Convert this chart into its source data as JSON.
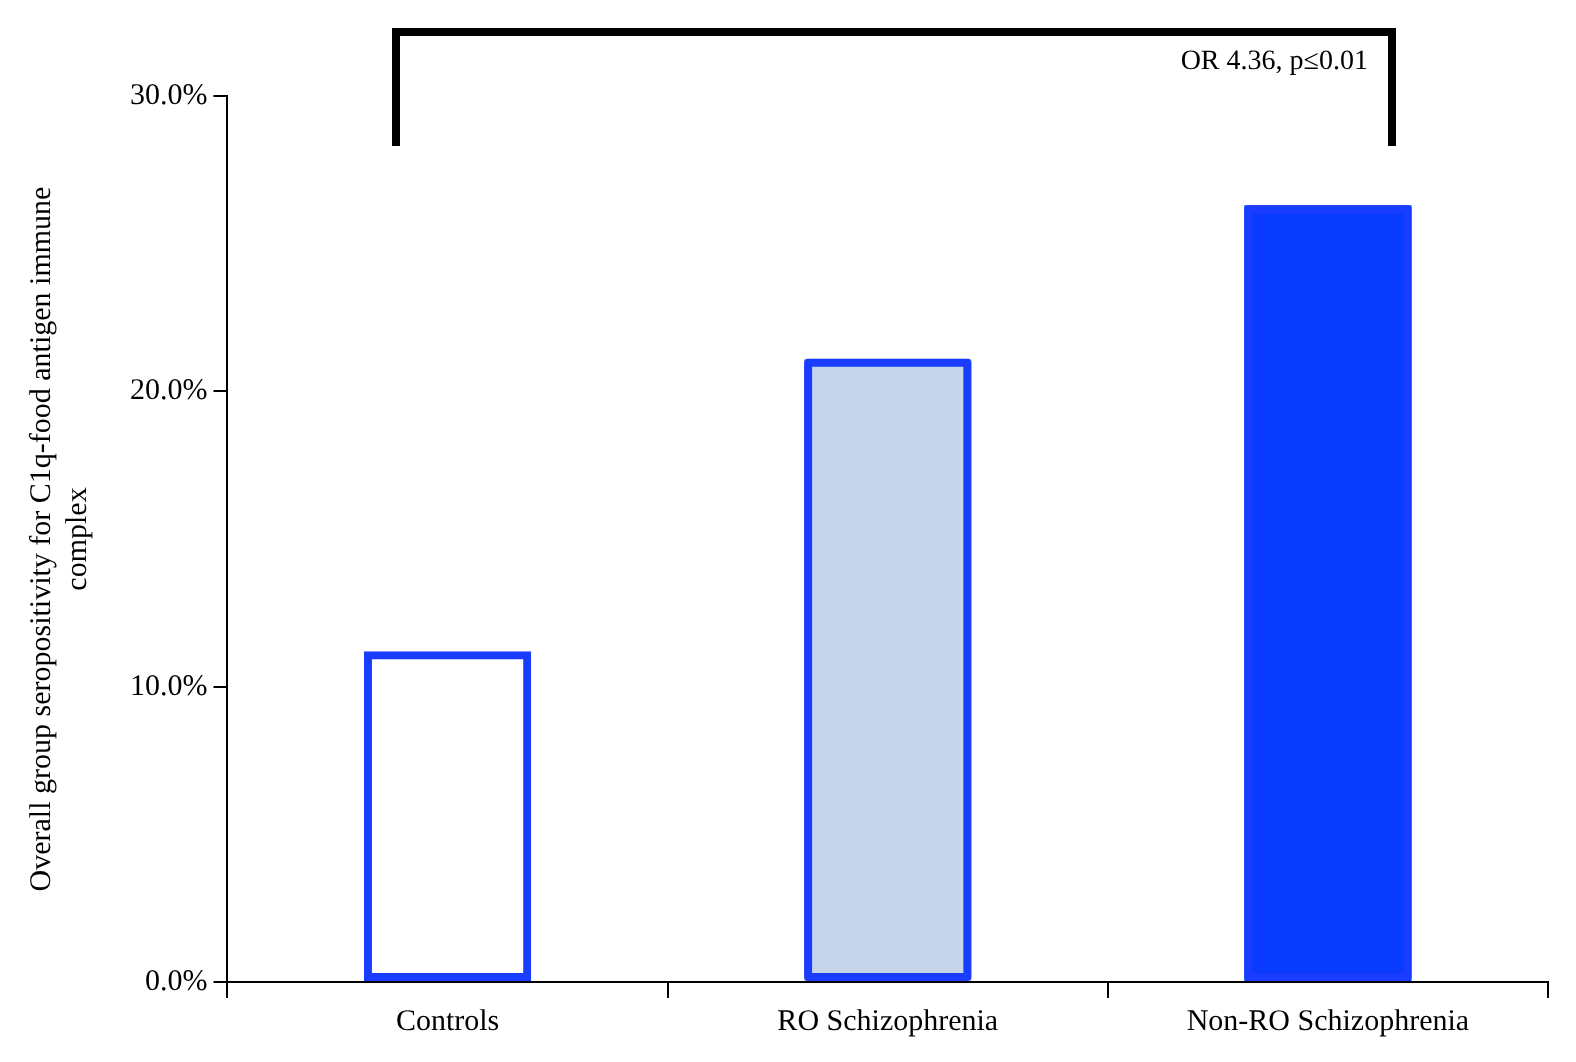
{
  "chart_data": {
    "type": "bar",
    "ylabel": "Overall group seropositivity for C1q-food antigen immune complex",
    "categories": [
      "Controls",
      "RO Schizophrenia",
      "Non-RO Schizophrenia"
    ],
    "series": [
      {
        "color": "#1a3cff",
        "colors": [
          "#1a3cff",
          "#c5d5ea",
          "#0a3cff"
        ],
        "values": [
          11.2,
          21.1,
          26.3
        ]
      }
    ],
    "ylim": [
      0,
      30
    ],
    "yticks": [
      {
        "value": 0,
        "label": "0.0%"
      },
      {
        "value": 10,
        "label": "10.0%"
      },
      {
        "value": 20,
        "label": "20.0%"
      },
      {
        "value": 30,
        "label": "30.0%"
      }
    ],
    "grid": false,
    "legend": false,
    "annotations": [
      "OR 4.36, p≤0.01"
    ]
  }
}
